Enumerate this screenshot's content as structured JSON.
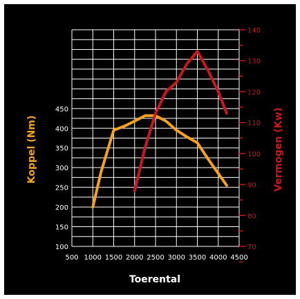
{
  "chart_data": {
    "type": "line",
    "title": "",
    "xlabel": "Toerental",
    "y_left_label": "Koppel (Nm)",
    "y_right_label": "Vermogen (Kw)",
    "xlim": [
      500,
      4500
    ],
    "x_ticks": [
      500,
      1000,
      1500,
      2000,
      2500,
      3000,
      3500,
      4000,
      4500
    ],
    "y_left_ticks": [
      100,
      150,
      200,
      250,
      300,
      350,
      400,
      450
    ],
    "y_left_range": [
      100,
      650
    ],
    "y_right_ticks": [
      70,
      80,
      90,
      100,
      110,
      120,
      130,
      140
    ],
    "y_right_range": [
      70,
      140
    ],
    "grid": true,
    "series": [
      {
        "name": "Koppel (Nm)",
        "axis": "left",
        "color": "#F7A21B",
        "x": [
          1000,
          1200,
          1500,
          1750,
          2000,
          2250,
          2500,
          2750,
          3000,
          3250,
          3500,
          3750,
          4000,
          4200
        ],
        "y": [
          200,
          290,
          395,
          405,
          418,
          432,
          432,
          418,
          395,
          378,
          363,
          323,
          285,
          255
        ]
      },
      {
        "name": "Vermogen (Kw)",
        "axis": "right",
        "color": "#C8171E",
        "x": [
          2000,
          2250,
          2500,
          2750,
          3000,
          3250,
          3500,
          3750,
          4000,
          4200
        ],
        "y": [
          88,
          102,
          113,
          120,
          123,
          129,
          133,
          127,
          120,
          113
        ]
      }
    ]
  },
  "colors": {
    "background": "#000000",
    "grid": "#ffffff",
    "left_axis": "#F7A21B",
    "right_axis": "#C8171E",
    "text": "#ffffff"
  }
}
